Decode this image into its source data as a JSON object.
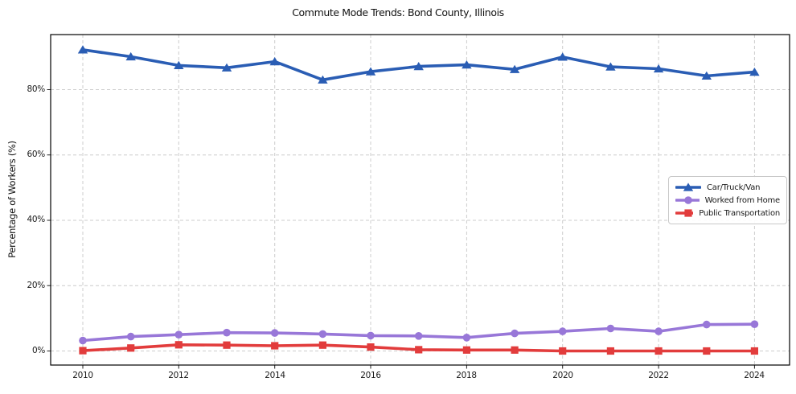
{
  "chart_data": {
    "type": "line",
    "title": "Commute Mode Trends: Bond County, Illinois",
    "xlabel": "",
    "ylabel": "Percentage of Workers (%)",
    "x": [
      2010,
      2011,
      2012,
      2013,
      2014,
      2015,
      2016,
      2017,
      2018,
      2019,
      2020,
      2021,
      2022,
      2023,
      2024
    ],
    "series": [
      {
        "name": "Car/Truck/Van",
        "color": "#2a5db4",
        "marker": "triangle",
        "values": [
          92.2,
          90.1,
          87.4,
          86.7,
          88.6,
          83.0,
          85.5,
          87.1,
          87.6,
          86.2,
          90.0,
          87.0,
          86.4,
          84.2,
          85.4
        ]
      },
      {
        "name": "Worked from Home",
        "color": "#9877d8",
        "marker": "circle",
        "values": [
          3.2,
          4.4,
          5.0,
          5.6,
          5.5,
          5.2,
          4.7,
          4.6,
          4.1,
          5.4,
          6.0,
          6.9,
          6.0,
          8.1,
          8.2
        ]
      },
      {
        "name": "Public Transportation",
        "color": "#e23c3c",
        "marker": "square",
        "values": [
          0.1,
          0.9,
          1.9,
          1.8,
          1.6,
          1.8,
          1.2,
          0.4,
          0.3,
          0.3,
          0.0,
          0.0,
          0.0,
          0.0,
          0.0
        ]
      }
    ],
    "xticks": [
      2010,
      2012,
      2014,
      2016,
      2018,
      2020,
      2022,
      2024
    ],
    "xticklabels": [
      "2010",
      "2012",
      "2014",
      "2016",
      "2018",
      "2020",
      "2022",
      "2024"
    ],
    "yticks": [
      0,
      20,
      40,
      60,
      80
    ],
    "yticklabels": [
      "0%",
      "20%",
      "40%",
      "60%",
      "80%"
    ],
    "xlim": [
      2009.33,
      2024.73
    ],
    "ylim": [
      -4.31,
      96.86
    ],
    "grid": true,
    "legend_position": "center-right"
  },
  "colors": {
    "grid": "#cccccc",
    "axis": "#000000",
    "tick": "#222222",
    "background": "#ffffff"
  }
}
